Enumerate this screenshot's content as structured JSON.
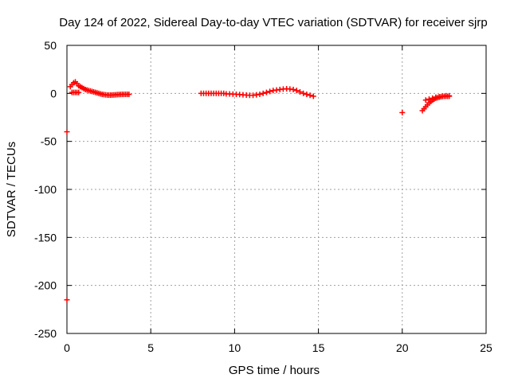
{
  "chart_data": {
    "type": "scatter",
    "title": "Day 124 of 2022, Sidereal Day-to-day VTEC variation (SDTVAR) for receiver sjrp",
    "xlabel": "GPS time / hours",
    "ylabel": "SDTVAR / TECUs",
    "xlim": [
      0,
      25
    ],
    "ylim": [
      -250,
      50
    ],
    "xticks": [
      0,
      5,
      10,
      15,
      20,
      25
    ],
    "yticks": [
      50,
      0,
      -50,
      -100,
      -150,
      -200,
      -250
    ],
    "grid": true,
    "marker": "+",
    "color": "#ff0000",
    "series": [
      {
        "name": "sjrp",
        "points": [
          [
            0.0,
            -40
          ],
          [
            0.0,
            -215
          ],
          [
            0.2,
            7
          ],
          [
            0.3,
            9
          ],
          [
            0.4,
            11
          ],
          [
            0.5,
            12
          ],
          [
            0.6,
            10
          ],
          [
            0.7,
            8
          ],
          [
            0.8,
            7
          ],
          [
            0.9,
            6
          ],
          [
            1.0,
            5
          ],
          [
            1.1,
            4
          ],
          [
            1.2,
            3.5
          ],
          [
            1.3,
            3
          ],
          [
            1.4,
            2.5
          ],
          [
            1.5,
            2
          ],
          [
            1.6,
            1.5
          ],
          [
            1.7,
            1
          ],
          [
            1.8,
            0.5
          ],
          [
            1.9,
            0
          ],
          [
            2.0,
            -0.5
          ],
          [
            2.1,
            -1
          ],
          [
            2.2,
            -1.2
          ],
          [
            2.3,
            -1.5
          ],
          [
            2.4,
            -1.7
          ],
          [
            2.5,
            -1.8
          ],
          [
            2.6,
            -1.8
          ],
          [
            2.7,
            -1.7
          ],
          [
            2.8,
            -1.6
          ],
          [
            2.9,
            -1.5
          ],
          [
            3.0,
            -1.3
          ],
          [
            3.1,
            -1.2
          ],
          [
            3.2,
            -1.1
          ],
          [
            3.3,
            -1
          ],
          [
            3.4,
            -1
          ],
          [
            3.5,
            -1
          ],
          [
            3.6,
            -1
          ],
          [
            3.7,
            -1
          ],
          [
            0.3,
            1
          ],
          [
            0.4,
            1
          ],
          [
            0.5,
            1
          ],
          [
            0.6,
            1
          ],
          [
            0.7,
            1
          ],
          [
            8.0,
            0
          ],
          [
            8.15,
            0
          ],
          [
            8.3,
            0
          ],
          [
            8.45,
            0
          ],
          [
            8.6,
            0
          ],
          [
            8.75,
            0
          ],
          [
            8.9,
            0
          ],
          [
            9.05,
            0
          ],
          [
            9.2,
            0
          ],
          [
            9.35,
            0
          ],
          [
            9.5,
            -0.5
          ],
          [
            9.7,
            -0.6
          ],
          [
            9.9,
            -0.8
          ],
          [
            10.1,
            -1
          ],
          [
            10.3,
            -1.2
          ],
          [
            10.5,
            -1.5
          ],
          [
            10.7,
            -1.8
          ],
          [
            10.9,
            -2
          ],
          [
            11.1,
            -2
          ],
          [
            11.3,
            -1.5
          ],
          [
            11.5,
            -1
          ],
          [
            11.7,
            0
          ],
          [
            11.9,
            1
          ],
          [
            12.1,
            2
          ],
          [
            12.3,
            3
          ],
          [
            12.5,
            3.5
          ],
          [
            12.7,
            4
          ],
          [
            12.9,
            4.5
          ],
          [
            13.1,
            4.8
          ],
          [
            13.3,
            4.5
          ],
          [
            13.5,
            4
          ],
          [
            13.7,
            3
          ],
          [
            13.9,
            1.5
          ],
          [
            14.1,
            0
          ],
          [
            14.3,
            -1
          ],
          [
            14.5,
            -2
          ],
          [
            14.7,
            -3
          ],
          [
            20.0,
            -20
          ],
          [
            21.2,
            -18
          ],
          [
            21.3,
            -16
          ],
          [
            21.4,
            -14
          ],
          [
            21.5,
            -12
          ],
          [
            21.6,
            -10
          ],
          [
            21.7,
            -8.5
          ],
          [
            21.8,
            -7
          ],
          [
            21.9,
            -6
          ],
          [
            22.0,
            -5
          ],
          [
            22.1,
            -4.5
          ],
          [
            22.2,
            -4
          ],
          [
            22.3,
            -3.5
          ],
          [
            22.4,
            -3.2
          ],
          [
            22.5,
            -3
          ],
          [
            22.6,
            -3
          ],
          [
            22.7,
            -3
          ],
          [
            22.8,
            -3
          ],
          [
            21.4,
            -7
          ],
          [
            21.6,
            -6
          ],
          [
            21.8,
            -5
          ],
          [
            22.0,
            -4
          ],
          [
            22.2,
            -3.5
          ],
          [
            22.4,
            -3
          ],
          [
            22.6,
            -2.5
          ],
          [
            22.8,
            -2.5
          ]
        ]
      }
    ]
  }
}
